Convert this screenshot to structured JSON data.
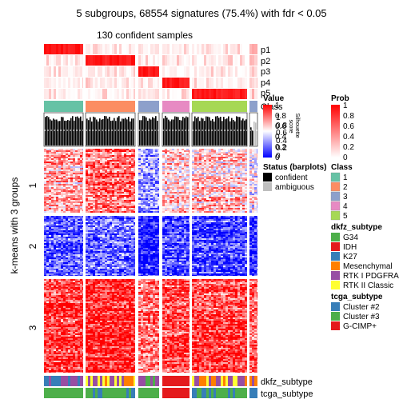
{
  "title": "5 subgroups, 68554 signatures (75.4%) with fdr < 0.05",
  "subtitle": "130 confident samples",
  "ylabel": "k-means with 3 groups",
  "row_groups": [
    "1",
    "2",
    "3"
  ],
  "prob_rows": [
    "p1",
    "p2",
    "p3",
    "p4",
    "p5"
  ],
  "class_row_label": "Class",
  "silhouette_label": "Silhouette\nscore",
  "bottom_tracks": [
    "dkfz_subtype",
    "tcga_subtype"
  ],
  "silhouette_ticks": [
    "1",
    "0.8",
    "0.6",
    "0.4",
    "0.2",
    "0"
  ],
  "legend": {
    "value": {
      "title": "Value",
      "ticks": [
        "1",
        "0.8",
        "0.6",
        "0.4",
        "0.2",
        "0"
      ]
    },
    "prob": {
      "title": "Prob",
      "ticks": [
        "1",
        "0.8",
        "0.6",
        "0.4",
        "0.2",
        "0"
      ]
    },
    "status": {
      "title": "Status (barplots)",
      "items": [
        {
          "label": "confident",
          "color": "#000000"
        },
        {
          "label": "ambiguous",
          "color": "#bebebe"
        }
      ]
    },
    "class": {
      "title": "Class",
      "items": [
        {
          "label": "1",
          "color": "#66C2A5"
        },
        {
          "label": "2",
          "color": "#FC8D62"
        },
        {
          "label": "3",
          "color": "#8DA0CB"
        },
        {
          "label": "4",
          "color": "#E78AC3"
        },
        {
          "label": "5",
          "color": "#A6D854"
        }
      ]
    },
    "dkfz": {
      "title": "dkfz_subtype",
      "items": [
        {
          "label": "G34",
          "color": "#4DAF4A"
        },
        {
          "label": "IDH",
          "color": "#E41A1C"
        },
        {
          "label": "K27",
          "color": "#377EB8"
        },
        {
          "label": "Mesenchymal",
          "color": "#FF7F00"
        },
        {
          "label": "RTK I PDGFRA",
          "color": "#984EA3"
        },
        {
          "label": "RTK II Classic",
          "color": "#FFFF33"
        }
      ]
    },
    "tcga": {
      "title": "tcga_subtype",
      "items": [
        {
          "label": "Cluster #2",
          "color": "#377EB8"
        },
        {
          "label": "Cluster #3",
          "color": "#4DAF4A"
        },
        {
          "label": "G-CIMP+",
          "color": "#E41A1C"
        }
      ]
    }
  },
  "colors": {
    "high": "#ff0000",
    "mid": "#ffffff",
    "low": "#0000ff"
  }
}
